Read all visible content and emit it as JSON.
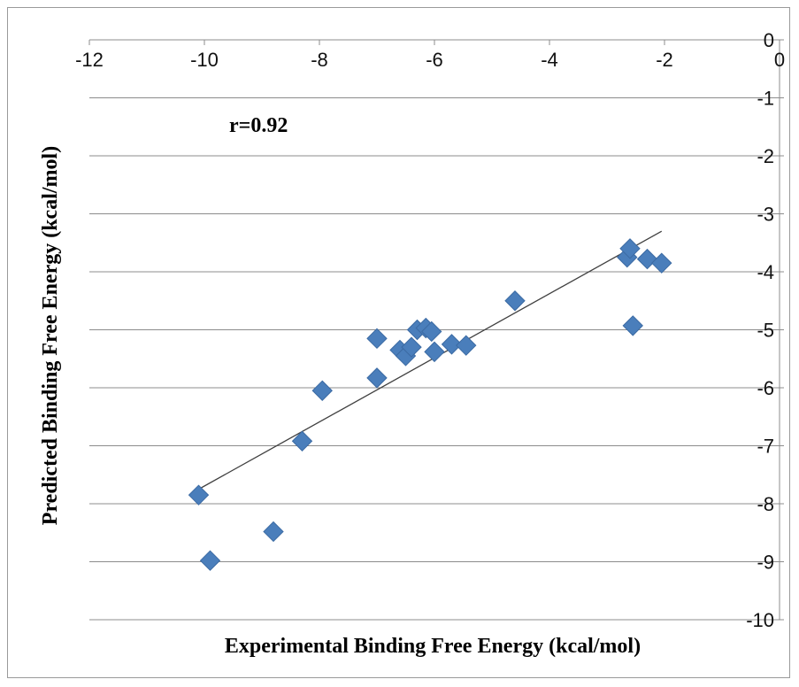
{
  "chart_data": {
    "type": "scatter",
    "title": "",
    "xlabel": "Experimental Binding Free Energy (kcal/mol)",
    "ylabel": "Predicted Binding Free Energy (kcal/mol)",
    "xlim": [
      -12,
      0
    ],
    "ylim": [
      -10,
      0
    ],
    "xticks": [
      -12,
      -10,
      -8,
      -6,
      -4,
      -2,
      0
    ],
    "yticks": [
      0,
      -1,
      -2,
      -3,
      -4,
      -5,
      -6,
      -7,
      -8,
      -9,
      -10
    ],
    "grid": "horizontal",
    "marker": "diamond",
    "marker_color": "#4a7ebb",
    "trendline": {
      "type": "linear",
      "x_range": [
        -10.1,
        -2.05
      ],
      "y_at_start": -7.75,
      "y_at_end": -3.3,
      "color": "#404040"
    },
    "annotation": "r=0.92",
    "points": [
      {
        "x": -10.1,
        "y": -7.85
      },
      {
        "x": -9.9,
        "y": -8.98
      },
      {
        "x": -8.8,
        "y": -8.48
      },
      {
        "x": -8.3,
        "y": -6.92
      },
      {
        "x": -7.95,
        "y": -6.05
      },
      {
        "x": -7.0,
        "y": -5.15
      },
      {
        "x": -7.0,
        "y": -5.83
      },
      {
        "x": -6.6,
        "y": -5.35
      },
      {
        "x": -6.5,
        "y": -5.45
      },
      {
        "x": -6.4,
        "y": -5.3
      },
      {
        "x": -6.3,
        "y": -5.0
      },
      {
        "x": -6.15,
        "y": -4.97
      },
      {
        "x": -6.05,
        "y": -5.03
      },
      {
        "x": -6.0,
        "y": -5.38
      },
      {
        "x": -5.7,
        "y": -5.25
      },
      {
        "x": -5.45,
        "y": -5.27
      },
      {
        "x": -4.6,
        "y": -4.5
      },
      {
        "x": -2.65,
        "y": -3.75
      },
      {
        "x": -2.6,
        "y": -3.6
      },
      {
        "x": -2.55,
        "y": -4.93
      },
      {
        "x": -2.3,
        "y": -3.78
      },
      {
        "x": -2.05,
        "y": -3.85
      }
    ]
  }
}
